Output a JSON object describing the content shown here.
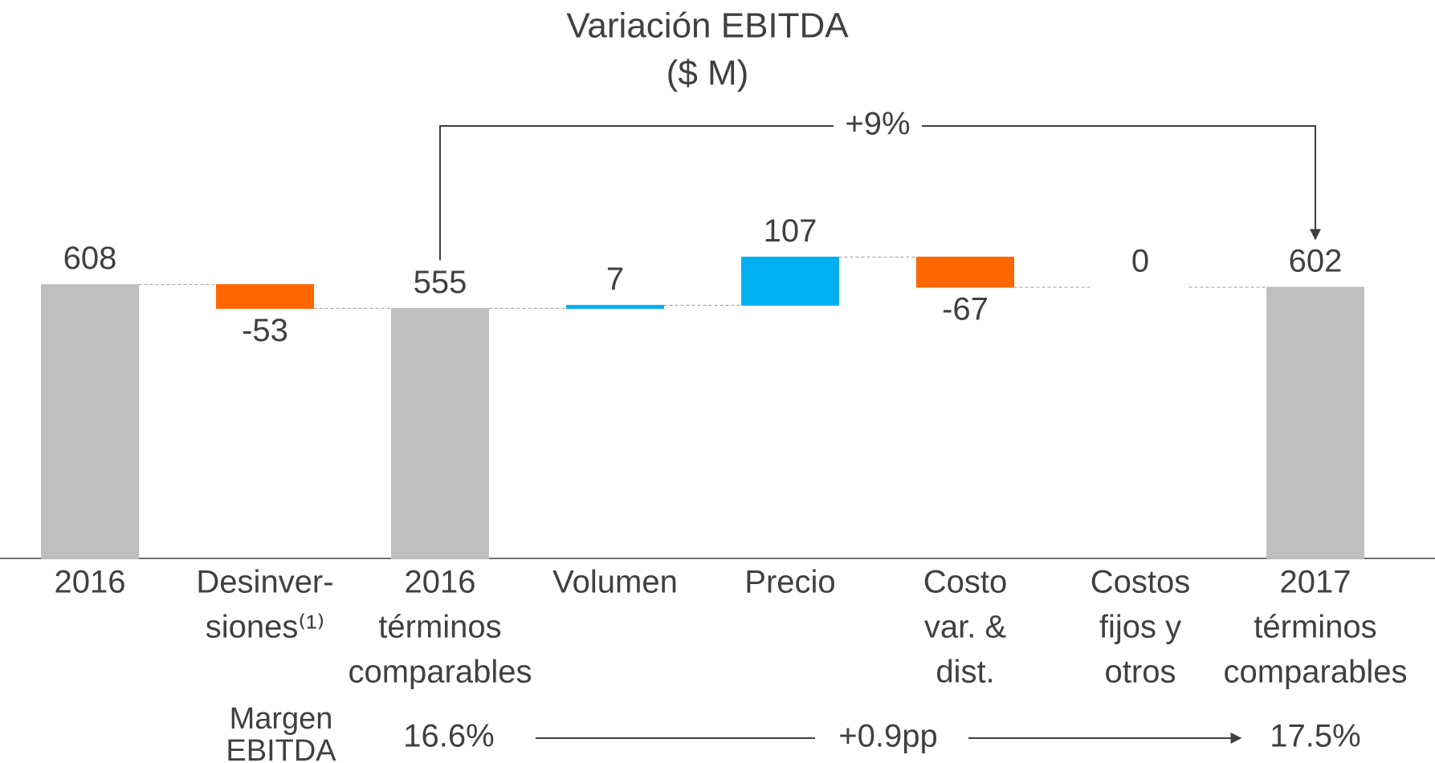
{
  "chart_data": {
    "type": "waterfall",
    "title": "Variación EBITDA",
    "subtitle": "($ M)",
    "categories": [
      [
        "2016"
      ],
      [
        "Desinver-",
        "siones⁽¹⁾"
      ],
      [
        "2016",
        "términos",
        "comparables"
      ],
      [
        "Volumen"
      ],
      [
        "Precio"
      ],
      [
        "Costo",
        "var. &",
        "dist."
      ],
      [
        "Costos",
        "fijos y",
        "otros"
      ],
      [
        "2017",
        "términos",
        "comparables"
      ]
    ],
    "values": [
      608,
      -53,
      555,
      7,
      107,
      -67,
      0,
      602
    ],
    "totals": [
      true,
      false,
      true,
      false,
      false,
      false,
      false,
      true
    ],
    "colors": {
      "total": "#bfbfbf",
      "increase": "#00b0f0",
      "decrease": "#ff6600"
    },
    "ylim": [
      0,
      700
    ],
    "growth_annotation": {
      "label": "+9%",
      "from": 2,
      "to": 7
    },
    "margin_row": {
      "label": [
        "Margen",
        "EBITDA"
      ],
      "start": "16.6%",
      "change": "+0.9pp",
      "end": "17.5%"
    }
  }
}
